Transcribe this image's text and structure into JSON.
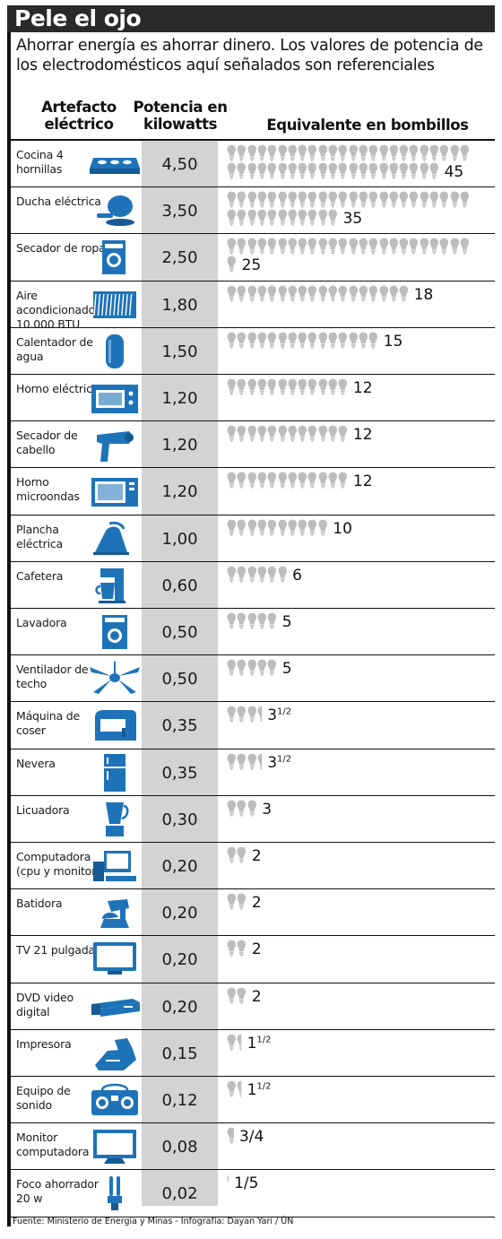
{
  "title": "Pele el ojo",
  "subtitle": "Ahorrar energía es ahorrar dinero. Los valores de potencia de los electrodomésticos aquí señalados son referenciales",
  "headers": {
    "appliance": "Artefacto eléctrico",
    "power": "Potencia en kilowatts",
    "equivalent": "Equivalente en bombillos"
  },
  "footer": "Fuente: Ministerio de Energía y Minas - Infografía: Dayan Yari / ÚN",
  "colors": {
    "accent": "#1e73b8",
    "band": "#d3d3d3",
    "bulb": "#bdbdbd"
  },
  "chart_data": {
    "type": "table",
    "columns": [
      "Artefacto eléctrico",
      "Potencia en kilowatts",
      "Equivalente en bombillos"
    ],
    "rows": [
      {
        "name": "Cocina 4 hornillas",
        "icon": "stove-icon",
        "power": "4,50",
        "kw": 4.5,
        "bulbs": 45,
        "eq_main": "45",
        "eq_frac": ""
      },
      {
        "name": "Ducha eléctrica",
        "icon": "shower-icon",
        "power": "3,50",
        "kw": 3.5,
        "bulbs": 35,
        "eq_main": "35",
        "eq_frac": ""
      },
      {
        "name": "Secador de ropa",
        "icon": "dryer-icon",
        "power": "2,50",
        "kw": 2.5,
        "bulbs": 25,
        "eq_main": "25",
        "eq_frac": ""
      },
      {
        "name": "Aire acondicionado 10.000 BTU",
        "icon": "air-conditioner-icon",
        "power": "1,80",
        "kw": 1.8,
        "bulbs": 18,
        "eq_main": "18",
        "eq_frac": ""
      },
      {
        "name": "Calentador de agua",
        "icon": "water-heater-icon",
        "power": "1,50",
        "kw": 1.5,
        "bulbs": 15,
        "eq_main": "15",
        "eq_frac": ""
      },
      {
        "name": "Horno eléctrico",
        "icon": "electric-oven-icon",
        "power": "1,20",
        "kw": 1.2,
        "bulbs": 12,
        "eq_main": "12",
        "eq_frac": ""
      },
      {
        "name": "Secador de cabello",
        "icon": "hair-dryer-icon",
        "power": "1,20",
        "kw": 1.2,
        "bulbs": 12,
        "eq_main": "12",
        "eq_frac": ""
      },
      {
        "name": "Horno microondas",
        "icon": "microwave-icon",
        "power": "1,20",
        "kw": 1.2,
        "bulbs": 12,
        "eq_main": "12",
        "eq_frac": ""
      },
      {
        "name": "Plancha eléctrica",
        "icon": "iron-icon",
        "power": "1,00",
        "kw": 1.0,
        "bulbs": 10,
        "eq_main": "10",
        "eq_frac": ""
      },
      {
        "name": "Cafetera",
        "icon": "coffee-maker-icon",
        "power": "0,60",
        "kw": 0.6,
        "bulbs": 6,
        "eq_main": "6",
        "eq_frac": ""
      },
      {
        "name": "Lavadora",
        "icon": "washing-machine-icon",
        "power": "0,50",
        "kw": 0.5,
        "bulbs": 5,
        "eq_main": "5",
        "eq_frac": ""
      },
      {
        "name": "Ventilador de techo",
        "icon": "ceiling-fan-icon",
        "power": "0,50",
        "kw": 0.5,
        "bulbs": 5,
        "eq_main": "5",
        "eq_frac": ""
      },
      {
        "name": "Máquina de coser",
        "icon": "sewing-machine-icon",
        "power": "0,35",
        "kw": 0.35,
        "bulbs": 3.5,
        "eq_main": "3",
        "eq_frac": "1/2"
      },
      {
        "name": "Nevera",
        "icon": "fridge-icon",
        "power": "0,35",
        "kw": 0.35,
        "bulbs": 3.5,
        "eq_main": "3",
        "eq_frac": "1/2"
      },
      {
        "name": "Licuadora",
        "icon": "blender-icon",
        "power": "0,30",
        "kw": 0.3,
        "bulbs": 3,
        "eq_main": "3",
        "eq_frac": ""
      },
      {
        "name": "Computadora (cpu y monitor)",
        "icon": "computer-icon",
        "power": "0,20",
        "kw": 0.2,
        "bulbs": 2,
        "eq_main": "2",
        "eq_frac": ""
      },
      {
        "name": "Batidora",
        "icon": "mixer-icon",
        "power": "0,20",
        "kw": 0.2,
        "bulbs": 2,
        "eq_main": "2",
        "eq_frac": ""
      },
      {
        "name": "TV 21 pulgadas",
        "icon": "tv-icon",
        "power": "0,20",
        "kw": 0.2,
        "bulbs": 2,
        "eq_main": "2",
        "eq_frac": ""
      },
      {
        "name": "DVD video digital",
        "icon": "dvd-player-icon",
        "power": "0,20",
        "kw": 0.2,
        "bulbs": 2,
        "eq_main": "2",
        "eq_frac": ""
      },
      {
        "name": "Impresora",
        "icon": "printer-icon",
        "power": "0,15",
        "kw": 0.15,
        "bulbs": 1.5,
        "eq_main": "1",
        "eq_frac": "1/2"
      },
      {
        "name": "Equipo de sonido",
        "icon": "stereo-icon",
        "power": "0,12",
        "kw": 0.12,
        "bulbs": 1.5,
        "eq_main": "1",
        "eq_frac": "1/2"
      },
      {
        "name": "Monitor computadora",
        "icon": "monitor-icon",
        "power": "0,08",
        "kw": 0.08,
        "bulbs": 0.75,
        "eq_main": "3/4",
        "eq_frac": ""
      },
      {
        "name": "Foco ahorrador 20 w",
        "icon": "cfl-bulb-icon",
        "power": "0,02",
        "kw": 0.02,
        "bulbs": 0.2,
        "eq_main": "1/5",
        "eq_frac": ""
      }
    ]
  }
}
